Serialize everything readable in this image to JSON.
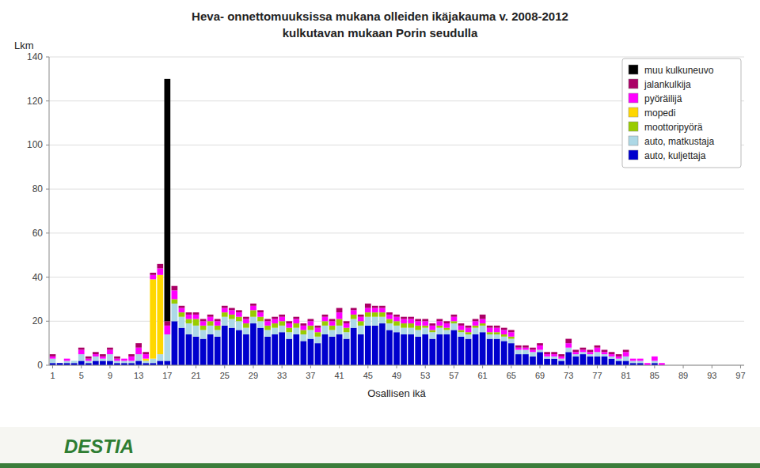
{
  "chart_data": {
    "type": "bar",
    "title": "Heva- onnettomuuksissa mukana olleiden ikäjakauma v. 2008-2012",
    "subtitle": "kulkutavan mukaan Porin seudulla",
    "x_label": "Osallisen ikä",
    "y_label": "Lkm",
    "stacked": true,
    "grid": true,
    "legend": "upper right",
    "ylim": [
      0,
      140
    ],
    "yticks": [
      0,
      20,
      40,
      60,
      80,
      100,
      120,
      140
    ],
    "categories": [
      "1",
      null,
      null,
      null,
      "5",
      null,
      null,
      null,
      "9",
      null,
      null,
      null,
      "13",
      null,
      null,
      null,
      "17",
      null,
      null,
      null,
      "21",
      null,
      null,
      null,
      "25",
      null,
      null,
      null,
      "29",
      null,
      null,
      null,
      "33",
      null,
      null,
      null,
      "37",
      null,
      null,
      null,
      "41",
      null,
      null,
      null,
      "45",
      null,
      null,
      null,
      "49",
      null,
      null,
      null,
      "53",
      null,
      null,
      null,
      "57",
      null,
      null,
      null,
      "61",
      null,
      null,
      null,
      "65",
      null,
      null,
      null,
      "69",
      null,
      null,
      null,
      "73",
      null,
      null,
      null,
      "77",
      null,
      null,
      null,
      "81",
      null,
      null,
      null,
      "85",
      null,
      null,
      null,
      "89",
      null,
      null,
      null,
      "93",
      null,
      null,
      null,
      "97"
    ],
    "series": [
      {
        "name": "auto, kuljettaja",
        "color": "#0000CD",
        "values": [
          1,
          1,
          1,
          1,
          2,
          1,
          2,
          2,
          2,
          1,
          1,
          1,
          2,
          1,
          1,
          2,
          2,
          20,
          17,
          14,
          13,
          12,
          14,
          13,
          18,
          17,
          16,
          14,
          19,
          17,
          13,
          14,
          15,
          12,
          14,
          11,
          12,
          10,
          14,
          13,
          14,
          12,
          17,
          14,
          18,
          18,
          19,
          16,
          15,
          14,
          14,
          13,
          14,
          12,
          14,
          14,
          16,
          13,
          12,
          14,
          15,
          12,
          12,
          11,
          10,
          5,
          5,
          4,
          6,
          3,
          3,
          2,
          6,
          4,
          5,
          4,
          4,
          4,
          3,
          2,
          2,
          1,
          1,
          0,
          1,
          0,
          0,
          0,
          0,
          0,
          0,
          0,
          0,
          0,
          0,
          0,
          0
        ]
      },
      {
        "name": "auto, matkustaja",
        "color": "#ADD8E6",
        "values": [
          2,
          0,
          1,
          1,
          3,
          1,
          2,
          1,
          3,
          1,
          1,
          1,
          3,
          1,
          2,
          3,
          12,
          8,
          5,
          5,
          5,
          4,
          4,
          3,
          4,
          4,
          4,
          3,
          3,
          3,
          3,
          3,
          3,
          3,
          3,
          3,
          4,
          3,
          4,
          3,
          4,
          3,
          4,
          4,
          4,
          4,
          3,
          3,
          3,
          3,
          3,
          3,
          3,
          3,
          3,
          2,
          3,
          2,
          2,
          3,
          3,
          2,
          2,
          2,
          2,
          2,
          2,
          2,
          1,
          1,
          1,
          1,
          2,
          1,
          1,
          1,
          2,
          1,
          1,
          1,
          2,
          1,
          1,
          0,
          1,
          0,
          0,
          0,
          0,
          0,
          0,
          0,
          0,
          0,
          0,
          0,
          0
        ]
      },
      {
        "name": "moottoripyörä",
        "color": "#99CC00",
        "values": [
          0,
          0,
          0,
          0,
          0,
          0,
          0,
          0,
          0,
          0,
          0,
          0,
          0,
          0,
          0,
          0,
          0,
          2,
          2,
          2,
          3,
          2,
          2,
          2,
          2,
          2,
          2,
          2,
          3,
          2,
          2,
          2,
          2,
          2,
          2,
          2,
          2,
          2,
          2,
          2,
          3,
          2,
          2,
          2,
          2,
          2,
          2,
          2,
          2,
          2,
          2,
          2,
          1,
          1,
          1,
          1,
          1,
          1,
          1,
          1,
          1,
          1,
          1,
          1,
          1,
          0,
          0,
          0,
          0,
          0,
          0,
          0,
          0,
          0,
          0,
          0,
          0,
          0,
          0,
          0,
          0,
          0,
          0,
          0,
          0,
          0,
          0,
          0,
          0,
          0,
          0,
          0,
          0,
          0,
          0,
          0,
          0
        ]
      },
      {
        "name": "mopedi",
        "color": "#FFD700",
        "values": [
          0,
          0,
          0,
          0,
          0,
          0,
          0,
          0,
          0,
          0,
          0,
          0,
          0,
          1,
          36,
          36,
          0,
          0,
          0,
          0,
          0,
          0,
          0,
          0,
          0,
          0,
          0,
          0,
          0,
          0,
          0,
          0,
          0,
          0,
          0,
          0,
          0,
          0,
          0,
          0,
          0,
          0,
          0,
          0,
          0,
          0,
          0,
          0,
          0,
          0,
          0,
          0,
          0,
          0,
          0,
          0,
          0,
          0,
          0,
          0,
          0,
          0,
          0,
          0,
          0,
          0,
          0,
          0,
          0,
          0,
          0,
          0,
          0,
          0,
          0,
          0,
          0,
          0,
          0,
          0,
          0,
          0,
          0,
          0,
          0,
          0,
          0,
          0,
          0,
          0,
          0,
          0,
          0,
          0,
          0,
          0,
          0
        ]
      },
      {
        "name": "pyöräilijä",
        "color": "#FF00FF",
        "values": [
          1,
          0,
          1,
          0,
          2,
          1,
          1,
          1,
          2,
          1,
          1,
          2,
          3,
          2,
          2,
          3,
          4,
          4,
          2,
          2,
          2,
          2,
          2,
          2,
          2,
          2,
          2,
          2,
          2,
          2,
          2,
          2,
          2,
          2,
          2,
          2,
          2,
          2,
          2,
          2,
          3,
          2,
          2,
          2,
          2,
          2,
          2,
          2,
          2,
          2,
          2,
          2,
          2,
          2,
          2,
          2,
          2,
          2,
          2,
          2,
          2,
          2,
          2,
          2,
          2,
          1,
          1,
          1,
          2,
          1,
          1,
          1,
          2,
          1,
          1,
          1,
          2,
          1,
          1,
          1,
          2,
          1,
          1,
          1,
          2,
          1,
          0,
          0,
          0,
          0,
          0,
          0,
          0,
          0,
          0,
          0,
          0
        ]
      },
      {
        "name": "jalankulkija",
        "color": "#AA0066",
        "values": [
          1,
          0,
          0,
          0,
          1,
          1,
          1,
          1,
          1,
          1,
          0,
          1,
          2,
          1,
          1,
          2,
          2,
          2,
          1,
          1,
          1,
          1,
          1,
          1,
          1,
          1,
          1,
          1,
          1,
          1,
          1,
          1,
          1,
          1,
          1,
          1,
          1,
          1,
          1,
          1,
          2,
          1,
          1,
          1,
          2,
          1,
          1,
          1,
          1,
          1,
          1,
          1,
          1,
          1,
          1,
          1,
          1,
          1,
          1,
          1,
          2,
          1,
          1,
          1,
          1,
          1,
          1,
          1,
          1,
          1,
          1,
          1,
          2,
          1,
          1,
          1,
          1,
          1,
          1,
          1,
          1,
          0,
          0,
          0,
          0,
          0,
          0,
          0,
          0,
          0,
          0,
          0,
          0,
          0,
          0,
          0,
          0
        ]
      },
      {
        "name": "muu kulkuneuvo",
        "color": "#000000",
        "values": [
          0,
          0,
          0,
          0,
          0,
          0,
          0,
          0,
          0,
          0,
          0,
          0,
          0,
          0,
          0,
          0,
          110,
          0,
          0,
          0,
          0,
          0,
          0,
          0,
          0,
          0,
          0,
          0,
          0,
          0,
          0,
          0,
          0,
          0,
          0,
          0,
          0,
          0,
          0,
          0,
          0,
          0,
          0,
          0,
          0,
          0,
          0,
          0,
          0,
          0,
          0,
          0,
          0,
          0,
          0,
          0,
          0,
          0,
          0,
          0,
          0,
          0,
          0,
          0,
          0,
          0,
          0,
          0,
          0,
          0,
          0,
          0,
          0,
          0,
          0,
          0,
          0,
          0,
          0,
          0,
          0,
          0,
          0,
          0,
          0,
          0,
          0,
          0,
          0,
          0,
          0,
          0,
          0,
          0,
          0,
          0,
          0
        ]
      }
    ],
    "annotations": [
      {
        "text": "DESTIA"
      }
    ]
  }
}
